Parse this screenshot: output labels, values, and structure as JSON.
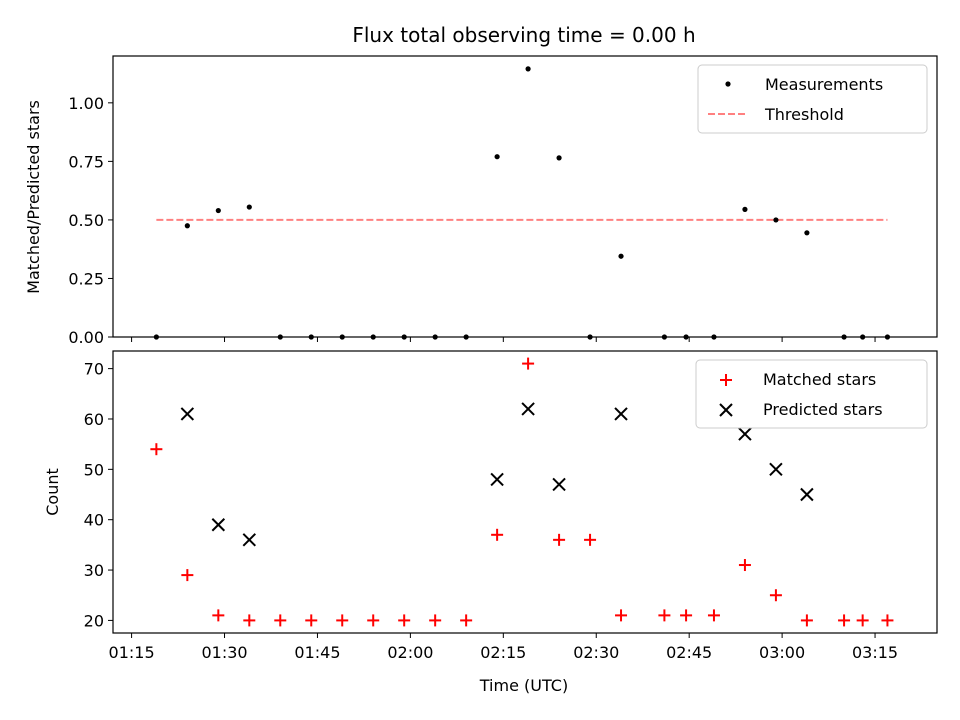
{
  "chart_data": [
    {
      "type": "scatter",
      "title": "Flux total observing time = 0.00 h",
      "xlabel": "",
      "ylabel": "Matched/Predicted stars",
      "ylim": [
        0.0,
        1.2
      ],
      "xlim": [
        72.0,
        205.0
      ],
      "yticks": [
        0.0,
        0.25,
        0.5,
        0.75,
        1.0
      ],
      "ytick_labels": [
        "0.00",
        "0.25",
        "0.50",
        "0.75",
        "1.00"
      ],
      "x_unit": "minutes after 00:00 UTC",
      "legend_position": "upper right",
      "legend": [
        "Measurements",
        "Threshold"
      ],
      "series": [
        {
          "name": "Measurements",
          "marker": "dot",
          "color": "#000000",
          "x": [
            79,
            84,
            89,
            94,
            99,
            104,
            109,
            114,
            119,
            124,
            129,
            134,
            139,
            144,
            149,
            154,
            161,
            164.5,
            169,
            174,
            179,
            184,
            190,
            193,
            197
          ],
          "y": [
            0.0,
            0.475,
            0.54,
            0.555,
            0.0,
            0.0,
            0.0,
            0.0,
            0.0,
            0.0,
            0.0,
            0.77,
            1.145,
            0.765,
            0.0,
            0.345,
            0.0,
            0.0,
            0.0,
            0.545,
            0.5,
            0.445,
            0.0,
            0.0,
            0.0
          ]
        },
        {
          "name": "Threshold",
          "style": "dashed",
          "color": "#ff8080",
          "x": [
            79,
            197
          ],
          "y": [
            0.5,
            0.5
          ]
        }
      ]
    },
    {
      "type": "scatter",
      "title": "",
      "xlabel": "Time (UTC)",
      "ylabel": "Count",
      "ylim": [
        17.5,
        73.5
      ],
      "xlim": [
        72.0,
        205.0
      ],
      "yticks": [
        20,
        30,
        40,
        50,
        60,
        70
      ],
      "ytick_labels": [
        "20",
        "30",
        "40",
        "50",
        "60",
        "70"
      ],
      "xticks": [
        75,
        90,
        105,
        120,
        135,
        150,
        165,
        180,
        195
      ],
      "xtick_labels": [
        "01:15",
        "01:30",
        "01:45",
        "02:00",
        "02:15",
        "02:30",
        "02:45",
        "03:00",
        "03:15"
      ],
      "x_unit": "minutes after 00:00 UTC",
      "legend_position": "upper right",
      "legend": [
        "Matched stars",
        "Predicted stars"
      ],
      "series": [
        {
          "name": "Matched stars",
          "marker": "plus",
          "color": "#ff0000",
          "x": [
            79,
            84,
            89,
            94,
            99,
            104,
            109,
            114,
            119,
            124,
            129,
            134,
            139,
            144,
            149,
            154,
            161,
            164.5,
            169,
            174,
            179,
            184,
            190,
            193,
            197
          ],
          "y": [
            54,
            29,
            21,
            20,
            20,
            20,
            20,
            20,
            20,
            20,
            20,
            37,
            71,
            36,
            36,
            21,
            21,
            21,
            21,
            31,
            25,
            20,
            20,
            20,
            20
          ]
        },
        {
          "name": "Predicted stars",
          "marker": "x",
          "color": "#000000",
          "x": [
            84,
            89,
            94,
            134,
            139,
            144,
            154,
            174,
            179,
            184
          ],
          "y": [
            61,
            39,
            36,
            48,
            62,
            47,
            61,
            57,
            50,
            45
          ]
        }
      ]
    }
  ]
}
